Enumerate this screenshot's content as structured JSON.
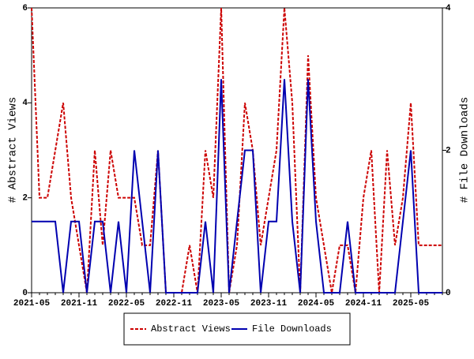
{
  "chart_data": {
    "type": "line",
    "y_label": "# Abstract Views",
    "y2_label": "# File Downloads",
    "categories": [
      "2021-05",
      null,
      null,
      null,
      null,
      null,
      "2021-11",
      null,
      null,
      null,
      null,
      null,
      "2022-05",
      null,
      null,
      null,
      null,
      null,
      "2022-11",
      null,
      null,
      null,
      null,
      null,
      "2023-05",
      null,
      null,
      null,
      null,
      null,
      "2023-11",
      null,
      null,
      null,
      null,
      null,
      "2024-05",
      null,
      null,
      null,
      null,
      null,
      "2024-11",
      null,
      null,
      null,
      null,
      null,
      "2025-05",
      null,
      null,
      null,
      null
    ],
    "ylim": [
      0,
      6
    ],
    "yticks": [
      0,
      2,
      4,
      6
    ],
    "y2lim": [
      0,
      4
    ],
    "y2ticks": [
      0,
      2,
      4
    ],
    "legend": "bottom",
    "series": [
      {
        "name": "Abstract Views",
        "color": "#cc0000",
        "dash": true,
        "values": [
          6,
          2,
          2,
          3,
          4,
          2,
          1,
          0,
          3,
          1,
          3,
          2,
          2,
          2,
          1,
          1,
          3,
          0,
          0,
          0,
          1,
          0,
          3,
          2,
          6,
          0,
          1,
          4,
          3,
          1,
          2,
          3,
          6,
          4,
          0,
          5,
          2,
          1,
          0,
          1,
          1,
          0,
          2,
          3,
          0,
          3,
          1,
          2,
          4,
          1,
          1,
          1,
          1
        ]
      },
      {
        "name": "File Downloads",
        "color": "#0000b0",
        "axis": "y2",
        "values": [
          1,
          1,
          1,
          1,
          0,
          1,
          1,
          0,
          1,
          1,
          0,
          1,
          0,
          2,
          1,
          0,
          2,
          0,
          0,
          0,
          0,
          0,
          1,
          0,
          3,
          0,
          1,
          2,
          2,
          0,
          1,
          1,
          3,
          1,
          0,
          3,
          1,
          0,
          0,
          0,
          1,
          0,
          0,
          0,
          0,
          0,
          0,
          1,
          2,
          0,
          0,
          0,
          0
        ]
      }
    ]
  }
}
